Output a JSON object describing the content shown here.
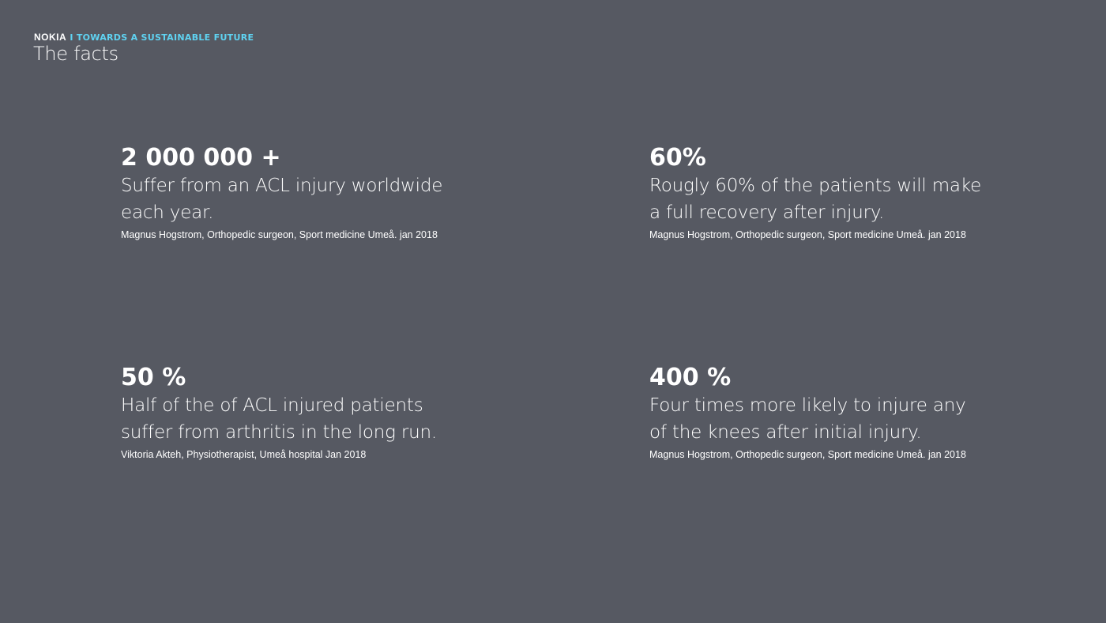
{
  "header": {
    "logo": "NOKIA",
    "tagline": "I TOWARDS A SUSTAINABLE FUTURE",
    "title": "The facts",
    "accent_color": "#5fd3f2",
    "background_color": "#565962"
  },
  "facts": [
    {
      "figure": "2 000 000 +",
      "line1": "Suffer from an ACL injury worldwide",
      "line2": "each year.",
      "source": "Magnus Hogstrom, Orthopedic surgeon, Sport medicine Umeå. jan 2018"
    },
    {
      "figure": "60%",
      "line1": "Rougly 60% of the patients will make",
      "line2": "a full recovery after injury.",
      "source": "Magnus Hogstrom, Orthopedic surgeon, Sport medicine Umeå. jan 2018"
    },
    {
      "figure": "50 %",
      "line1": "Half of the of ACL injured patients",
      "line2": "suffer from arthritis in the long run.",
      "source": "Viktoria Akteh, Physiotherapist, Umeå hospital Jan 2018"
    },
    {
      "figure": "400 %",
      "line1": "Four times more likely to injure any",
      "line2": "of the knees after initial injury.",
      "source": "Magnus Hogstrom, Orthopedic surgeon, Sport medicine Umeå. jan 2018"
    }
  ]
}
